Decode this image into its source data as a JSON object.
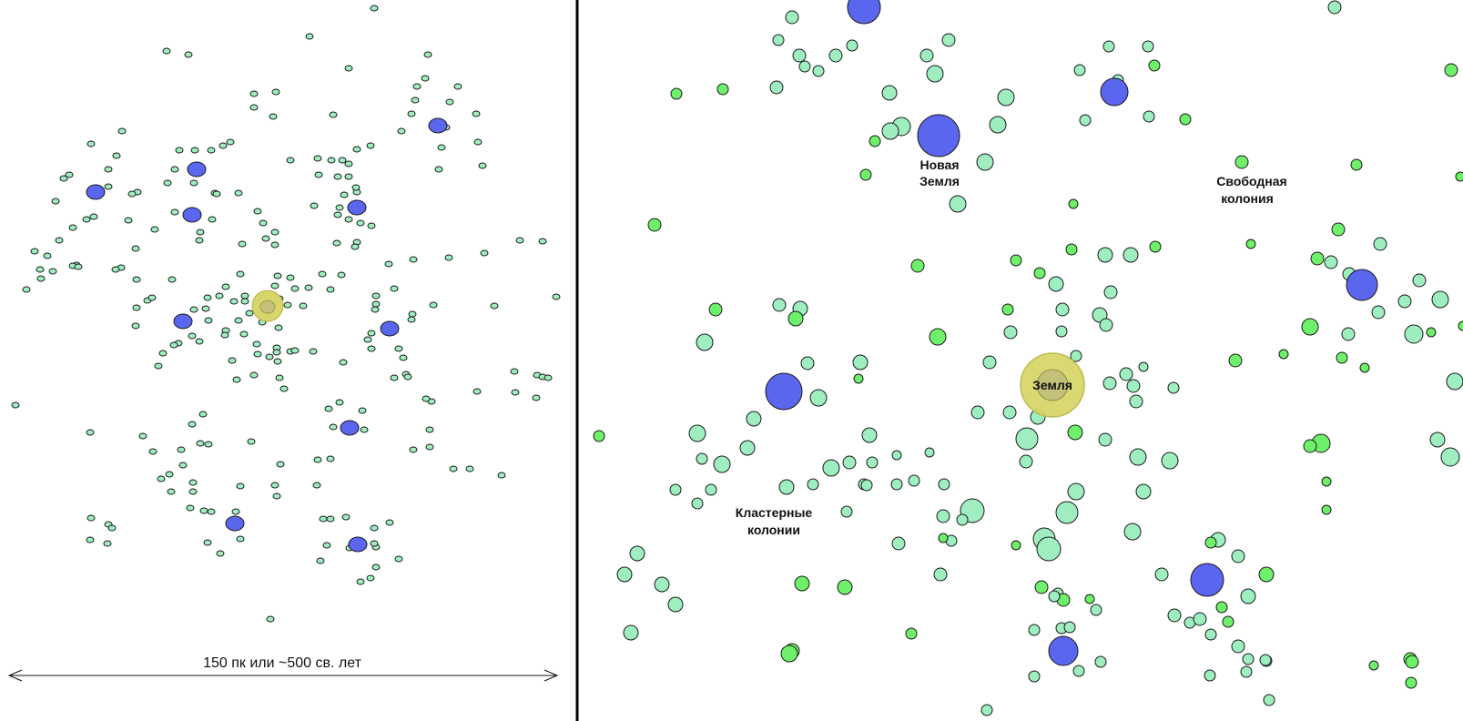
{
  "labels": {
    "scale": "150 пк или ~500 св. лет",
    "earth": "Земля",
    "new_earth_1": "Новая",
    "new_earth_2": "Земля",
    "free_colony_1": "Свободная",
    "free_colony_2": "колония",
    "cluster_1": "Кластерные",
    "cluster_2": "колонии"
  },
  "colors": {
    "star_small_fill": "#9eeec0",
    "star_bright_fill": "#6ef06a",
    "colony_fill": "#5b66ee",
    "earth_halo": "#d7d66a",
    "earth_core": "#c4c27a",
    "outline": "#1a1a1a",
    "divider": "#000000"
  },
  "icons": {
    "scale_arrow": "double-headed-arrow-icon",
    "earth": "sun-halo-icon",
    "star": "circle-icon"
  }
}
